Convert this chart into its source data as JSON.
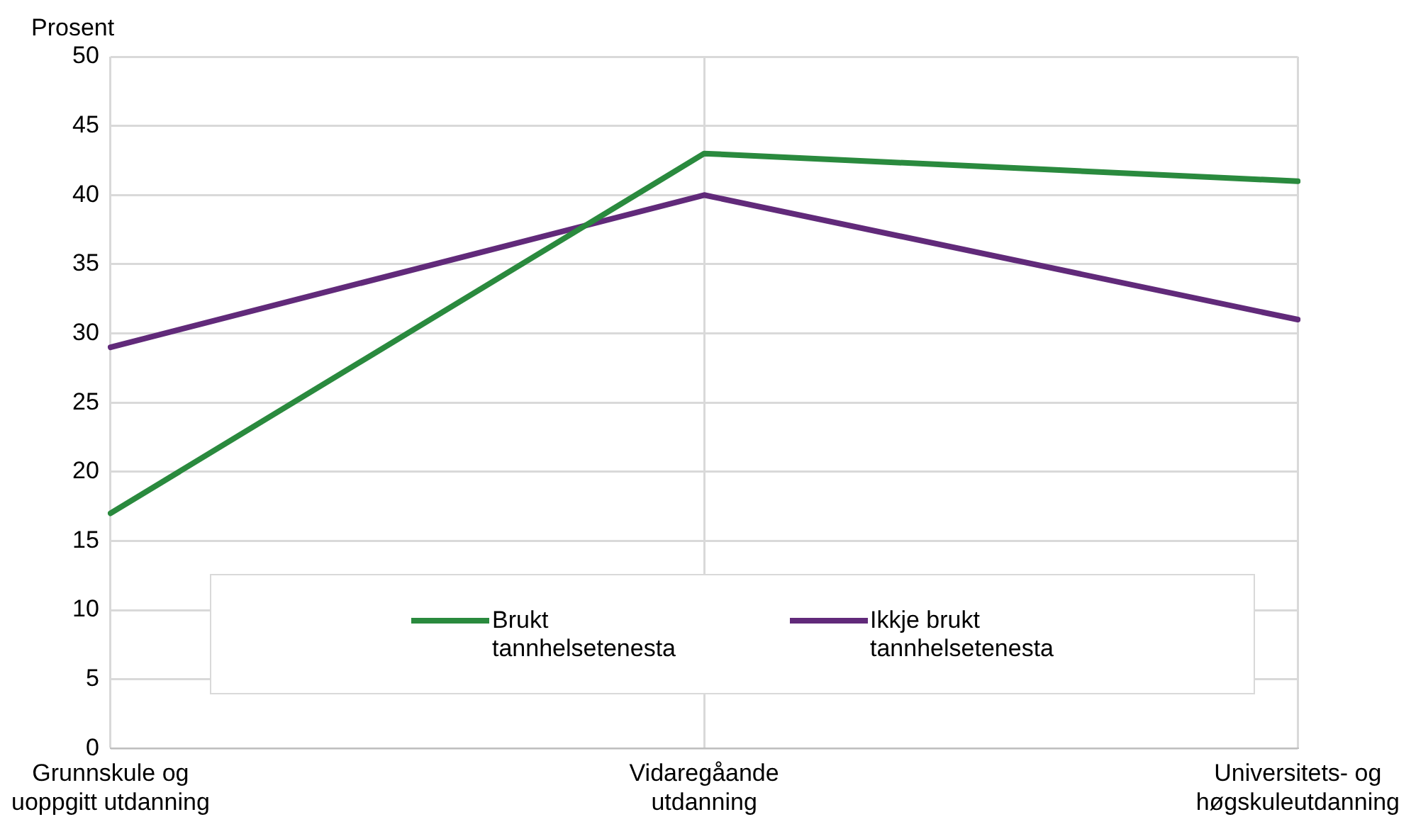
{
  "chart_data": {
    "type": "line",
    "ylabel": "Prosent",
    "categories": [
      "Grunnskule og uoppgitt utdanning",
      "Vidaregåande utdanning",
      "Universitets- og høgskuleutdanning"
    ],
    "series": [
      {
        "name": "Brukt tannhelsetenesta",
        "color": "#2a8a3e",
        "values": [
          17,
          43,
          41
        ]
      },
      {
        "name": "Ikkje brukt tannhelsetenesta",
        "color": "#612a7a",
        "values": [
          29,
          40,
          31
        ]
      }
    ],
    "ylim": [
      0,
      50
    ],
    "yticks": [
      0,
      5,
      10,
      15,
      20,
      25,
      30,
      35,
      40,
      45,
      50
    ],
    "grid": true,
    "legend": "bottom",
    "marker": "none",
    "line_style": "solid"
  }
}
